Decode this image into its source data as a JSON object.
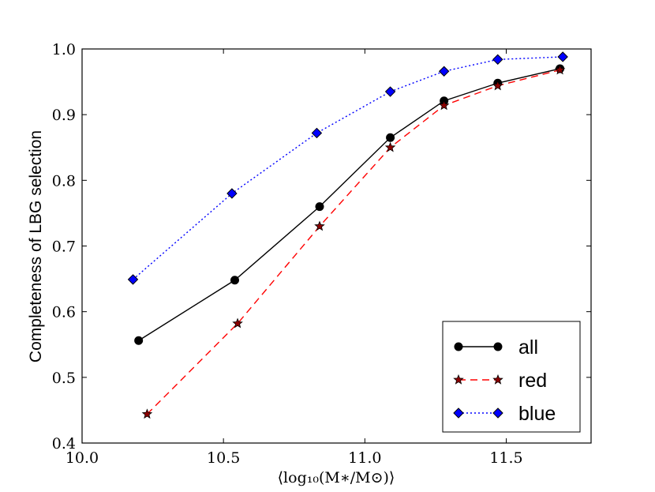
{
  "chart_data": {
    "type": "line",
    "title": "",
    "xlabel": "⟨log₁₀(M∗/M⊙)⟩",
    "ylabel": "Completeness of LBG selection",
    "xlim": [
      10.0,
      11.8
    ],
    "ylim": [
      0.4,
      1.0
    ],
    "xticks": [
      10.0,
      10.5,
      11.0,
      11.5
    ],
    "xtick_labels": [
      "10.0",
      "10.5",
      "11.0",
      "11.5"
    ],
    "yticks": [
      0.4,
      0.5,
      0.6,
      0.7,
      0.8,
      0.9,
      1.0
    ],
    "ytick_labels": [
      "0.4",
      "0.5",
      "0.6",
      "0.7",
      "0.8",
      "0.9",
      "1.0"
    ],
    "grid": false,
    "legend_position": "bottom-right",
    "series": [
      {
        "name": "all",
        "color": "#000000",
        "line_style": "solid",
        "marker": "circle",
        "x": [
          10.2,
          10.54,
          10.84,
          11.09,
          11.28,
          11.47,
          11.69
        ],
        "y": [
          0.556,
          0.648,
          0.76,
          0.865,
          0.921,
          0.948,
          0.97
        ]
      },
      {
        "name": "red",
        "color": "#ff0000",
        "marker_color": "#8b0000",
        "line_style": "dashed",
        "marker": "star",
        "x": [
          10.23,
          10.55,
          10.84,
          11.09,
          11.28,
          11.47,
          11.69
        ],
        "y": [
          0.444,
          0.582,
          0.73,
          0.85,
          0.914,
          0.944,
          0.968
        ]
      },
      {
        "name": "blue",
        "color": "#0000ff",
        "line_style": "dotted",
        "marker": "diamond",
        "x": [
          10.18,
          10.53,
          10.83,
          11.09,
          11.28,
          11.47,
          11.7
        ],
        "y": [
          0.649,
          0.78,
          0.872,
          0.935,
          0.966,
          0.984,
          0.988
        ]
      }
    ]
  }
}
